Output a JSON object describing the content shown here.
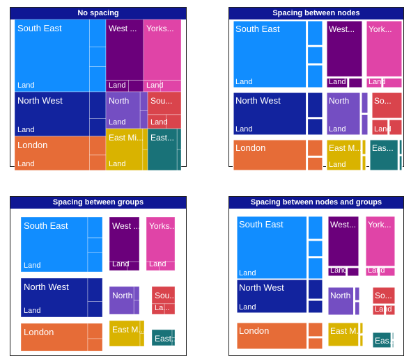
{
  "colors": {
    "title_bg": "#0f1794",
    "south_east": "#118dff",
    "north_west": "#12239e",
    "london": "#e66c37",
    "west": "#6b007b",
    "yorks": "#e044a7",
    "north": "#744ec2",
    "south": "#d9444c",
    "east_midlands": "#d9b300",
    "east": "#197278"
  },
  "panels": [
    {
      "title": "No spacing"
    },
    {
      "title": "Spacing between nodes"
    },
    {
      "title": "Spacing between groups"
    },
    {
      "title": "Spacing between nodes and groups"
    }
  ],
  "chart_data": [
    {
      "type": "treemap",
      "title": "No spacing",
      "groups": [
        {
          "name": "South East",
          "label": "South East",
          "child_label": "Land"
        },
        {
          "name": "North West",
          "label": "North West",
          "child_label": "Land"
        },
        {
          "name": "London",
          "label": "London",
          "child_label": "Land"
        },
        {
          "name": "West ...",
          "label": "West ...",
          "child_label": "Land"
        },
        {
          "name": "Yorks...",
          "label": "Yorks...",
          "child_label": "Land"
        },
        {
          "name": "North",
          "label": "North",
          "child_label": "Land"
        },
        {
          "name": "Sou...",
          "label": "Sou...",
          "child_label": "Land"
        },
        {
          "name": "East Mi...",
          "label": "East Mi...",
          "child_label": "Land"
        },
        {
          "name": "East...",
          "label": "East...",
          "child_label": ""
        }
      ]
    },
    {
      "type": "treemap",
      "title": "Spacing between nodes",
      "groups": [
        {
          "name": "South East",
          "label": "South East",
          "child_label": "Land"
        },
        {
          "name": "North West",
          "label": "North West",
          "child_label": "Land"
        },
        {
          "name": "London",
          "label": "London",
          "child_label": ""
        },
        {
          "name": "West...",
          "label": "West...",
          "child_label": "Land"
        },
        {
          "name": "York...",
          "label": "York...",
          "child_label": "Land"
        },
        {
          "name": "North",
          "label": "North",
          "child_label": "Land"
        },
        {
          "name": "So...",
          "label": "So...",
          "child_label": "Land"
        },
        {
          "name": "East M...",
          "label": "East M...",
          "child_label": "Land"
        },
        {
          "name": "Eas...",
          "label": "Eas...",
          "child_label": ""
        }
      ]
    },
    {
      "type": "treemap",
      "title": "Spacing between groups",
      "groups": [
        {
          "name": "South East",
          "label": "South East",
          "child_label": "Land"
        },
        {
          "name": "North West",
          "label": "North West",
          "child_label": "Land"
        },
        {
          "name": "London",
          "label": "London",
          "child_label": ""
        },
        {
          "name": "West ...",
          "label": "West ...",
          "child_label": "Land"
        },
        {
          "name": "Yorks...",
          "label": "Yorks...",
          "child_label": "Land"
        },
        {
          "name": "North",
          "label": "North",
          "child_label": ""
        },
        {
          "name": "Sou...",
          "label": "Sou...",
          "child_label": "La..."
        },
        {
          "name": "East M...",
          "label": "East M...",
          "child_label": ""
        },
        {
          "name": "East...",
          "label": "East...",
          "child_label": ""
        }
      ]
    },
    {
      "type": "treemap",
      "title": "Spacing between nodes and groups",
      "groups": [
        {
          "name": "South East",
          "label": "South East",
          "child_label": "Land"
        },
        {
          "name": "North West",
          "label": "North West",
          "child_label": "Land"
        },
        {
          "name": "London",
          "label": "London",
          "child_label": ""
        },
        {
          "name": "West...",
          "label": "West...",
          "child_label": "Land"
        },
        {
          "name": "York...",
          "label": "York...",
          "child_label": "Land"
        },
        {
          "name": "North",
          "label": "North",
          "child_label": ""
        },
        {
          "name": "So...",
          "label": "So...",
          "child_label": "Land"
        },
        {
          "name": "East M...",
          "label": "East M...",
          "child_label": ""
        },
        {
          "name": "Eas...",
          "label": "Eas...",
          "child_label": ""
        }
      ]
    }
  ]
}
